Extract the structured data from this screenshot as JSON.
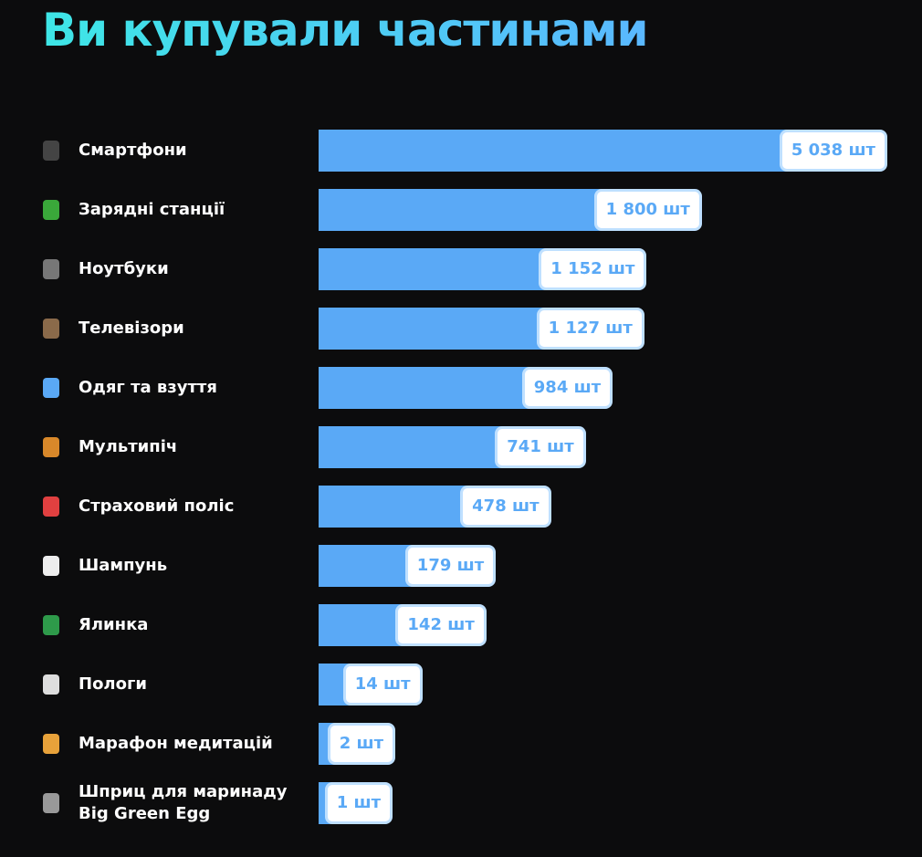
{
  "chart_data": {
    "type": "bar",
    "orientation": "horizontal",
    "title": "Ви купували частинами",
    "categories": [
      "Смартфони",
      "Зарядні станції",
      "Ноутбуки",
      "Телевізори",
      "Одяг та взуття",
      "Мультипіч",
      "Страховий поліс",
      "Шампунь",
      "Ялинка",
      "Пологи",
      "Марафон медитацій",
      "Шприц для маринаду Big Green Egg"
    ],
    "values": [
      5038,
      1800,
      1152,
      1127,
      984,
      741,
      478,
      179,
      142,
      14,
      2,
      1
    ],
    "value_labels": [
      "5 038 шт",
      "1 800 шт",
      "1 152 шт",
      "1 127 шт",
      "984 шт",
      "741 шт",
      "478 шт",
      "179 шт",
      "142 шт",
      "14 шт",
      "2 шт",
      "1 шт"
    ],
    "color": "#5aa9f6"
  }
}
